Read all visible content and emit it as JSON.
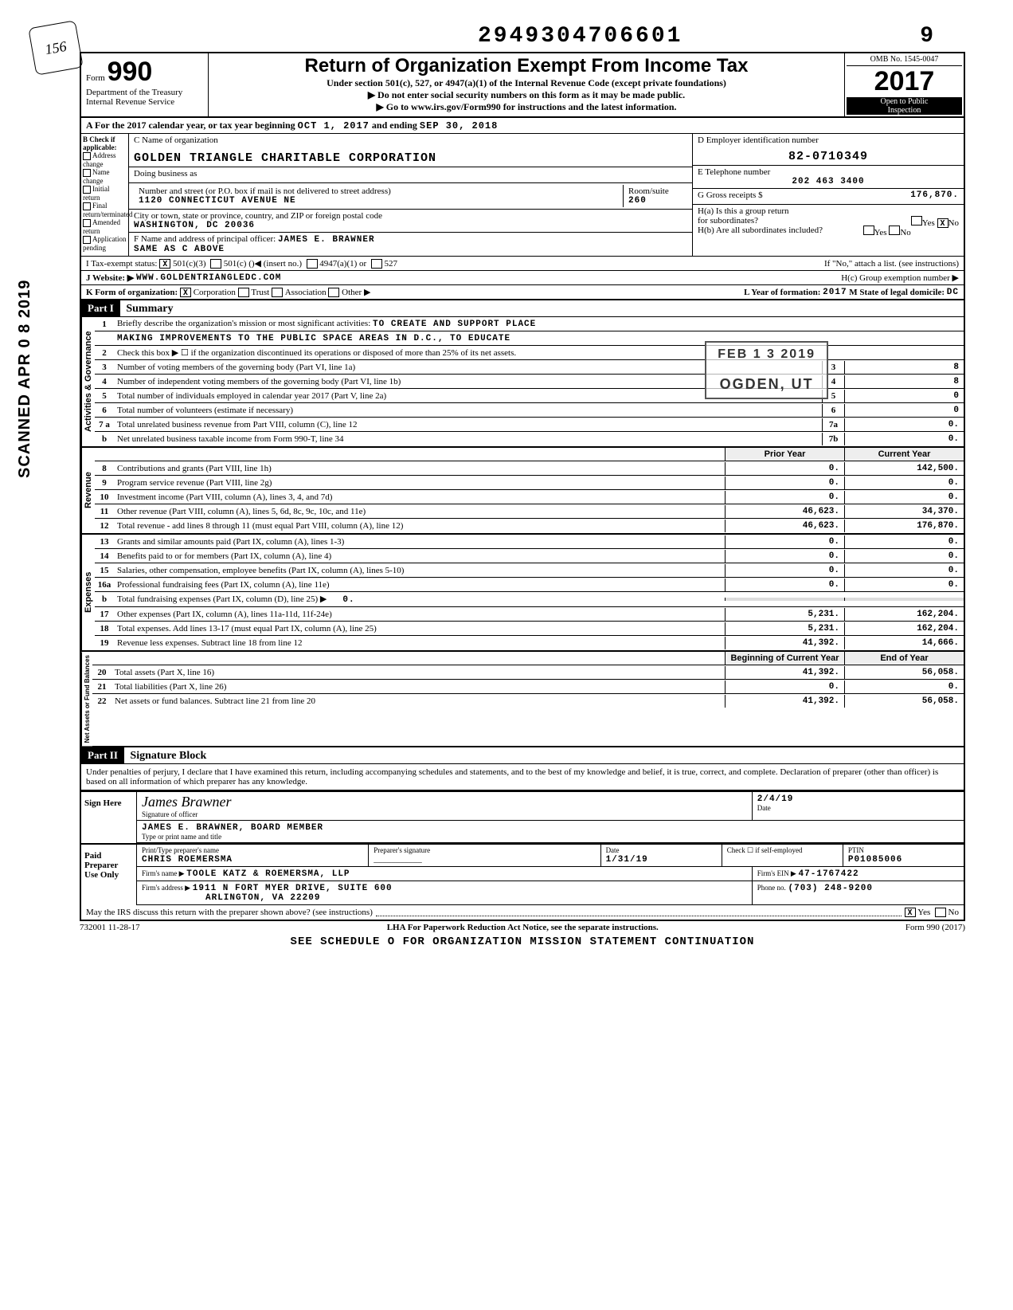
{
  "sidebar_stamp": "SCANNED APR 0 8 2019",
  "top_number": "2949304706601",
  "top_digit": "9",
  "logo_scribble": "156",
  "header": {
    "form_prefix": "Form",
    "form_number": "990",
    "dept1": "Department of the Treasury",
    "dept2": "Internal Revenue Service",
    "title": "Return of Organization Exempt From Income Tax",
    "subtitle": "Under section 501(c), 527, or 4947(a)(1) of the Internal Revenue Code (except private foundations)",
    "note1": "▶ Do not enter social security numbers on this form as it may be made public.",
    "note2": "▶ Go to www.irs.gov/Form990 for instructions and the latest information.",
    "omb": "OMB No. 1545-0047",
    "year": "2017",
    "inspect1": "Open to Public",
    "inspect2": "Inspection"
  },
  "line_a": {
    "prefix": "A For the 2017 calendar year, or tax year beginning",
    "begin": "OCT 1, 2017",
    "mid": "and ending",
    "end": "SEP 30, 2018"
  },
  "b": {
    "hdr": "B Check if applicable:",
    "opts": [
      "Address change",
      "Name change",
      "Initial return",
      "Final return/terminated",
      "Amended return",
      "Application pending"
    ],
    "c_label": "C Name of organization",
    "name": "GOLDEN TRIANGLE CHARITABLE CORPORATION",
    "dba_label": "Doing business as",
    "dba": "",
    "addr_label": "Number and street (or P.O. box if mail is not delivered to street address)",
    "addr": "1120 CONNECTICUT AVENUE NE",
    "room_label": "Room/suite",
    "room": "260",
    "city_label": "City or town, state or province, country, and ZIP or foreign postal code",
    "city": "WASHINGTON, DC  20036",
    "officer_label": "F Name and address of principal officer:",
    "officer": "JAMES E. BRAWNER",
    "officer_addr": "SAME AS C ABOVE",
    "d_label": "D Employer identification number",
    "ein": "82-0710349",
    "e_label": "E Telephone number",
    "phone": "202 463 3400",
    "g_label": "G Gross receipts $",
    "gross": "176,870.",
    "ha_label": "H(a) Is this a group return",
    "ha_label2": "for subordinates?",
    "ha_yes": "Yes",
    "ha_no": "No",
    "hb_label": "H(b) Are all subordinates included?",
    "hb_note": "If \"No,\" attach a list. (see instructions)",
    "hc_label": "H(c) Group exemption number ▶"
  },
  "i": {
    "label": "I Tax-exempt status:",
    "opt1": "501(c)(3)",
    "opt2": "501(c) (",
    "opt2_suffix": ")◀ (insert no.)",
    "opt3": "4947(a)(1) or",
    "opt4": "527"
  },
  "j": {
    "label": "J Website: ▶",
    "val": "WWW.GOLDENTRIANGLEDC.COM"
  },
  "k": {
    "label": "K Form of organization:",
    "opts": [
      "Corporation",
      "Trust",
      "Association",
      "Other ▶"
    ],
    "l_label": "L Year of formation:",
    "l_val": "2017",
    "m_label": "M State of legal domicile:",
    "m_val": "DC"
  },
  "part1": {
    "hdr": "Part I",
    "title": "Summary"
  },
  "stamp": {
    "date": "FEB 1 3 2019",
    "place": "OGDEN, UT"
  },
  "governance": {
    "label": "Activities & Governance",
    "l1_pre": "Briefly describe the organization's mission or most significant activities:",
    "l1_val": "TO CREATE AND SUPPORT PLACE",
    "l1_cont": "MAKING IMPROVEMENTS TO THE PUBLIC SPACE AREAS IN D.C., TO EDUCATE",
    "l2": "Check this box ▶ ☐ if the organization discontinued its operations or disposed of more than 25% of its net assets.",
    "rows": [
      {
        "n": "3",
        "txt": "Number of voting members of the governing body (Part VI, line 1a)",
        "box": "3",
        "val": "8"
      },
      {
        "n": "4",
        "txt": "Number of independent voting members of the governing body (Part VI, line 1b)",
        "box": "4",
        "val": "8"
      },
      {
        "n": "5",
        "txt": "Total number of individuals employed in calendar year 2017 (Part V, line 2a)",
        "box": "5",
        "val": "0"
      },
      {
        "n": "6",
        "txt": "Total number of volunteers (estimate if necessary)",
        "box": "6",
        "val": "0"
      },
      {
        "n": "7 a",
        "txt": "Total unrelated business revenue from Part VIII, column (C), line 12",
        "box": "7a",
        "val": "0."
      },
      {
        "n": "b",
        "txt": "Net unrelated business taxable income from Form 990-T, line 34",
        "box": "7b",
        "val": "0."
      }
    ]
  },
  "revenue": {
    "label": "Revenue",
    "col1": "Prior Year",
    "col2": "Current Year",
    "rows": [
      {
        "n": "8",
        "txt": "Contributions and grants (Part VIII, line 1h)",
        "p": "0.",
        "c": "142,500."
      },
      {
        "n": "9",
        "txt": "Program service revenue (Part VIII, line 2g)",
        "p": "0.",
        "c": "0."
      },
      {
        "n": "10",
        "txt": "Investment income (Part VIII, column (A), lines 3, 4, and 7d)",
        "p": "0.",
        "c": "0."
      },
      {
        "n": "11",
        "txt": "Other revenue (Part VIII, column (A), lines 5, 6d, 8c, 9c, 10c, and 11e)",
        "p": "46,623.",
        "c": "34,370."
      },
      {
        "n": "12",
        "txt": "Total revenue - add lines 8 through 11 (must equal Part VIII, column (A), line 12)",
        "p": "46,623.",
        "c": "176,870."
      }
    ]
  },
  "expenses": {
    "label": "Expenses",
    "rows": [
      {
        "n": "13",
        "txt": "Grants and similar amounts paid (Part IX, column (A), lines 1-3)",
        "p": "0.",
        "c": "0."
      },
      {
        "n": "14",
        "txt": "Benefits paid to or for members (Part IX, column (A), line 4)",
        "p": "0.",
        "c": "0."
      },
      {
        "n": "15",
        "txt": "Salaries, other compensation, employee benefits (Part IX, column (A), lines 5-10)",
        "p": "0.",
        "c": "0."
      },
      {
        "n": "16a",
        "txt": "Professional fundraising fees (Part IX, column (A), line 11e)",
        "p": "0.",
        "c": "0."
      },
      {
        "n": "b",
        "txt": "Total fundraising expenses (Part IX, column (D), line 25) ▶",
        "inset": "0.",
        "p": "",
        "c": "",
        "shade": true
      },
      {
        "n": "17",
        "txt": "Other expenses (Part IX, column (A), lines 11a-11d, 11f-24e)",
        "p": "5,231.",
        "c": "162,204."
      },
      {
        "n": "18",
        "txt": "Total expenses. Add lines 13-17 (must equal Part IX, column (A), line 25)",
        "p": "5,231.",
        "c": "162,204."
      },
      {
        "n": "19",
        "txt": "Revenue less expenses. Subtract line 18 from line 12",
        "p": "41,392.",
        "c": "14,666."
      }
    ]
  },
  "netassets": {
    "label": "Net Assets or Fund Balances",
    "col1": "Beginning of Current Year",
    "col2": "End of Year",
    "rows": [
      {
        "n": "20",
        "txt": "Total assets (Part X, line 16)",
        "p": "41,392.",
        "c": "56,058."
      },
      {
        "n": "21",
        "txt": "Total liabilities (Part X, line 26)",
        "p": "0.",
        "c": "0."
      },
      {
        "n": "22",
        "txt": "Net assets or fund balances. Subtract line 21 from line 20",
        "p": "41,392.",
        "c": "56,058."
      }
    ]
  },
  "part2": {
    "hdr": "Part II",
    "title": "Signature Block",
    "perjury": "Under penalties of perjury, I declare that I have examined this return, including accompanying schedules and statements, and to the best of my knowledge and belief, it is true, correct, and complete. Declaration of preparer (other than officer) is based on all information of which preparer has any knowledge."
  },
  "sign": {
    "here": "Sign Here",
    "sig_label": "Signature of officer",
    "date_label": "Date",
    "date": "2/4/19",
    "name": "JAMES E. BRAWNER, BOARD MEMBER",
    "name_label": "Type or print name and title"
  },
  "paid": {
    "hdr": "Paid Preparer Use Only",
    "pt_label": "Print/Type preparer's name",
    "pt_name": "CHRIS ROEMERSMA",
    "sig_label": "Preparer's signature",
    "date_label": "Date",
    "date": "1/31/19",
    "check_label": "Check ☐ if self-employed",
    "ptin_label": "PTIN",
    "ptin": "P01085006",
    "firm_label": "Firm's name ▶",
    "firm": "TOOLE KATZ & ROEMERSMA, LLP",
    "ein_label": "Firm's EIN ▶",
    "ein": "47-1767422",
    "addr_label": "Firm's address ▶",
    "addr1": "1911 N FORT MYER DRIVE, SUITE 600",
    "addr2": "ARLINGTON, VA 22209",
    "phone_label": "Phone no.",
    "phone": "(703) 248-9200"
  },
  "discuss": {
    "txt": "May the IRS discuss this return with the preparer shown above? (see instructions)",
    "yes": "Yes",
    "no": "No"
  },
  "footer": {
    "left": "732001 11-28-17",
    "mid": "LHA  For Paperwork Reduction Act Notice, see the separate instructions.",
    "right": "Form 990 (2017)",
    "cont": "SEE SCHEDULE O FOR ORGANIZATION MISSION STATEMENT CONTINUATION"
  }
}
